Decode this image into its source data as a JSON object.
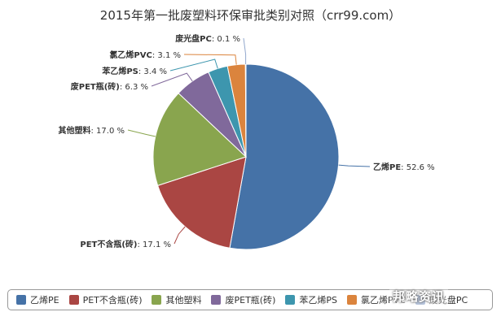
{
  "chart_data": {
    "type": "pie",
    "title": "2015年第一批废塑料环保审批类别对照（crr99.com）",
    "unit": "%",
    "slices": [
      {
        "name": "乙烯PE",
        "value": 52.6,
        "color": "#4572A7"
      },
      {
        "name": "PET不含瓶(砖)",
        "value": 17.1,
        "color": "#AA4643"
      },
      {
        "name": "其他塑料",
        "value": 17.0,
        "color": "#89A54E"
      },
      {
        "name": "废PET瓶(砖)",
        "value": 6.3,
        "color": "#80699B"
      },
      {
        "name": "苯乙烯PS",
        "value": 3.4,
        "color": "#3D96AE"
      },
      {
        "name": "氯乙烯PVC",
        "value": 3.1,
        "color": "#DB843D"
      },
      {
        "name": "废光盘PC",
        "value": 0.1,
        "color": "#92A8CD"
      }
    ],
    "legend_placement": "bottom"
  },
  "watermark": "邦略资讯"
}
